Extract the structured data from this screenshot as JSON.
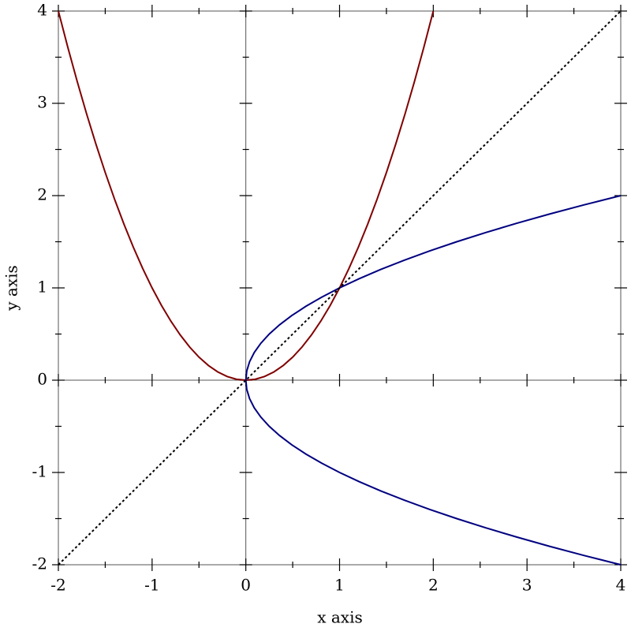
{
  "chart_data": {
    "type": "line",
    "xlabel": "x axis",
    "ylabel": "y axis",
    "xlim": [
      -2,
      4
    ],
    "ylim": [
      -2,
      4
    ],
    "xticks": [
      -2,
      -1,
      0,
      1,
      2,
      3,
      4
    ],
    "yticks": [
      -2,
      -1,
      0,
      1,
      2,
      3,
      4
    ],
    "xminorticks": [
      -1.5,
      -0.5,
      0.5,
      1.5,
      2.5,
      3.5
    ],
    "yminorticks": [
      -1.5,
      -0.5,
      0.5,
      1.5,
      2.5,
      3.5
    ],
    "origin_axes": true,
    "series": [
      {
        "color": "#800000",
        "dash": "solid",
        "x": [
          -2,
          -1.9,
          -1.8,
          -1.7,
          -1.6,
          -1.5,
          -1.4,
          -1.3,
          -1.2,
          -1.1,
          -1,
          -0.9,
          -0.8,
          -0.7,
          -0.6,
          -0.5,
          -0.4,
          -0.3,
          -0.2,
          -0.1,
          0,
          0.1,
          0.2,
          0.3,
          0.4,
          0.5,
          0.6,
          0.7,
          0.8,
          0.9,
          1,
          1.1,
          1.2,
          1.3,
          1.4,
          1.5,
          1.6,
          1.7,
          1.8,
          1.9,
          2
        ],
        "values": [
          4,
          3.61,
          3.24,
          2.89,
          2.56,
          2.25,
          1.96,
          1.69,
          1.44,
          1.21,
          1,
          0.81,
          0.64,
          0.49,
          0.36,
          0.25,
          0.16,
          0.09,
          0.04,
          0.01,
          0,
          0.01,
          0.04,
          0.09,
          0.16,
          0.25,
          0.36,
          0.49,
          0.64,
          0.81,
          1,
          1.21,
          1.44,
          1.69,
          1.96,
          2.25,
          2.56,
          2.89,
          3.24,
          3.61,
          4
        ]
      },
      {
        "color": "#000080",
        "dash": "solid",
        "x": [
          4,
          3.61,
          3.24,
          2.89,
          2.56,
          2.25,
          1.96,
          1.69,
          1.44,
          1.21,
          1,
          0.81,
          0.64,
          0.49,
          0.36,
          0.25,
          0.16,
          0.09,
          0.04,
          0.01,
          0,
          0.01,
          0.04,
          0.09,
          0.16,
          0.25,
          0.36,
          0.49,
          0.64,
          0.81,
          1,
          1.21,
          1.44,
          1.69,
          1.96,
          2.25,
          2.56,
          2.89,
          3.24,
          3.61,
          4
        ],
        "values": [
          -2,
          -1.9,
          -1.8,
          -1.7,
          -1.6,
          -1.5,
          -1.4,
          -1.3,
          -1.2,
          -1.1,
          -1,
          -0.9,
          -0.8,
          -0.7,
          -0.6,
          -0.5,
          -0.4,
          -0.3,
          -0.2,
          -0.1,
          0,
          0.1,
          0.2,
          0.3,
          0.4,
          0.5,
          0.6,
          0.7,
          0.8,
          0.9,
          1,
          1.1,
          1.2,
          1.3,
          1.4,
          1.5,
          1.6,
          1.7,
          1.8,
          1.9,
          2
        ]
      },
      {
        "color": "#000000",
        "dash": "dotted",
        "x": [
          -2,
          4
        ],
        "values": [
          -2,
          4
        ]
      }
    ]
  }
}
